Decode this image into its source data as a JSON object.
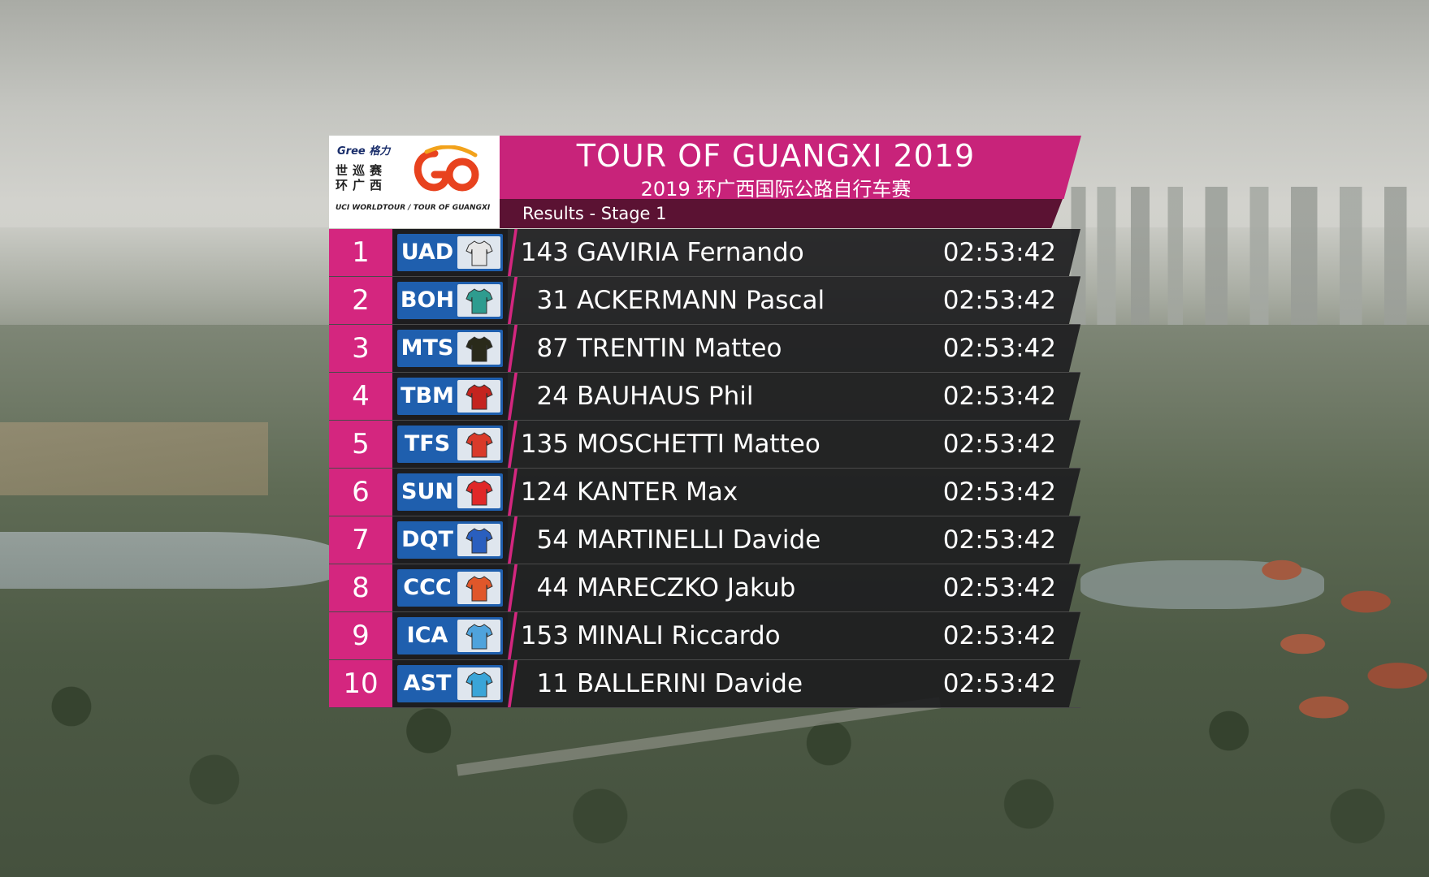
{
  "logo": {
    "sponsor": "Gree 格力",
    "chinese": "世巡赛 环广西",
    "caption": "UCI WORLDTOUR / TOUR OF GUANGXI"
  },
  "header": {
    "title": "TOUR OF GUANGXI 2019",
    "subtitle": "2019 环广西国际公路自行车赛",
    "results_label": "Results - Stage 1"
  },
  "colors": {
    "accent_magenta": "#d4267f",
    "results_bar": "#5b1233",
    "team_badge_blue": "#1f5fae"
  },
  "results": [
    {
      "position": "1",
      "team": "UAD",
      "jersey": "#e6e6e6",
      "bib": "143",
      "name": "GAVIRIA Fernando",
      "time": "02:53:42"
    },
    {
      "position": "2",
      "team": "BOH",
      "jersey": "#2e9c8f",
      "bib": "31",
      "name": "ACKERMANN Pascal",
      "time": "02:53:42"
    },
    {
      "position": "3",
      "team": "MTS",
      "jersey": "#2a2a1a",
      "bib": "87",
      "name": "TRENTIN Matteo",
      "time": "02:53:42"
    },
    {
      "position": "4",
      "team": "TBM",
      "jersey": "#c4241f",
      "bib": "24",
      "name": "BAUHAUS Phil",
      "time": "02:53:42"
    },
    {
      "position": "5",
      "team": "TFS",
      "jersey": "#d93a2a",
      "bib": "135",
      "name": "MOSCHETTI Matteo",
      "time": "02:53:42"
    },
    {
      "position": "6",
      "team": "SUN",
      "jersey": "#e02828",
      "bib": "124",
      "name": "KANTER Max",
      "time": "02:53:42"
    },
    {
      "position": "7",
      "team": "DQT",
      "jersey": "#2a5fbf",
      "bib": "54",
      "name": "MARTINELLI Davide",
      "time": "02:53:42"
    },
    {
      "position": "8",
      "team": "CCC",
      "jersey": "#e0572a",
      "bib": "44",
      "name": "MARECZKO Jakub",
      "time": "02:53:42"
    },
    {
      "position": "9",
      "team": "ICA",
      "jersey": "#4fa3dc",
      "bib": "153",
      "name": "MINALI Riccardo",
      "time": "02:53:42"
    },
    {
      "position": "10",
      "team": "AST",
      "jersey": "#3aa5d8",
      "bib": "11",
      "name": "BALLERINI Davide",
      "time": "02:53:42"
    }
  ]
}
